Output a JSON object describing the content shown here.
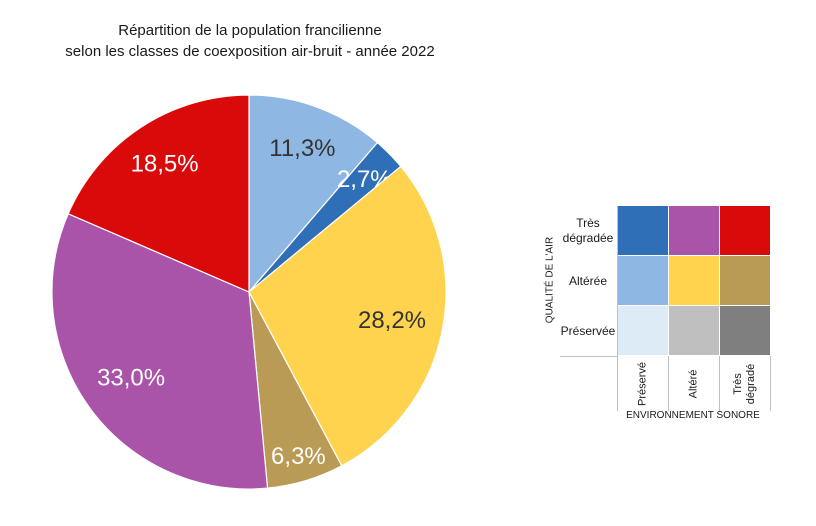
{
  "chart_data": {
    "type": "pie",
    "title": [
      "Répartition de la population francilienne",
      "selon les classes de coexposition air-bruit - année 2022"
    ],
    "slices": [
      {
        "key": "altere_preserve",
        "value": 11.3,
        "label": "11,3%",
        "color": "#8EB8E3",
        "text_color": "#333333"
      },
      {
        "key": "tres_degrade_preserve",
        "value": 2.7,
        "label": "2,7%",
        "color": "#2E6FB7",
        "text_color": "#ffffff"
      },
      {
        "key": "altere_altere",
        "value": 28.2,
        "label": "28,2%",
        "color": "#FFD34E",
        "text_color": "#333333"
      },
      {
        "key": "altere_tres_degrade",
        "value": 6.3,
        "label": "6,3%",
        "color": "#B99B55",
        "text_color": "#ffffff"
      },
      {
        "key": "tres_degrade_altere",
        "value": 33.0,
        "label": "33,0%",
        "color": "#A953A9",
        "text_color": "#ffffff"
      },
      {
        "key": "tres_degrade_tres_degrade",
        "value": 18.5,
        "label": "18,5%",
        "color": "#D90A0A",
        "text_color": "#ffffff"
      }
    ]
  },
  "legend": {
    "y_axis_label": "QUALITÉ DE L'AIR",
    "x_axis_label": "ENVIRONNEMENT SONORE",
    "rows": [
      {
        "label_line1": "Très",
        "label_line2": "dégradée",
        "colors": [
          "#2E6FB7",
          "#A953A9",
          "#D90A0A"
        ]
      },
      {
        "label_line1": "Altérée",
        "label_line2": "",
        "colors": [
          "#8EB8E3",
          "#FFD34E",
          "#B99B55"
        ]
      },
      {
        "label_line1": "Préservée",
        "label_line2": "",
        "colors": [
          "#DDEBF7",
          "#BFBFBF",
          "#7F7F7F"
        ]
      }
    ],
    "columns": [
      {
        "label_line1": "Préservé",
        "label_line2": ""
      },
      {
        "label_line1": "Altéré",
        "label_line2": ""
      },
      {
        "label_line1": "Très",
        "label_line2": "dégradé"
      }
    ]
  }
}
